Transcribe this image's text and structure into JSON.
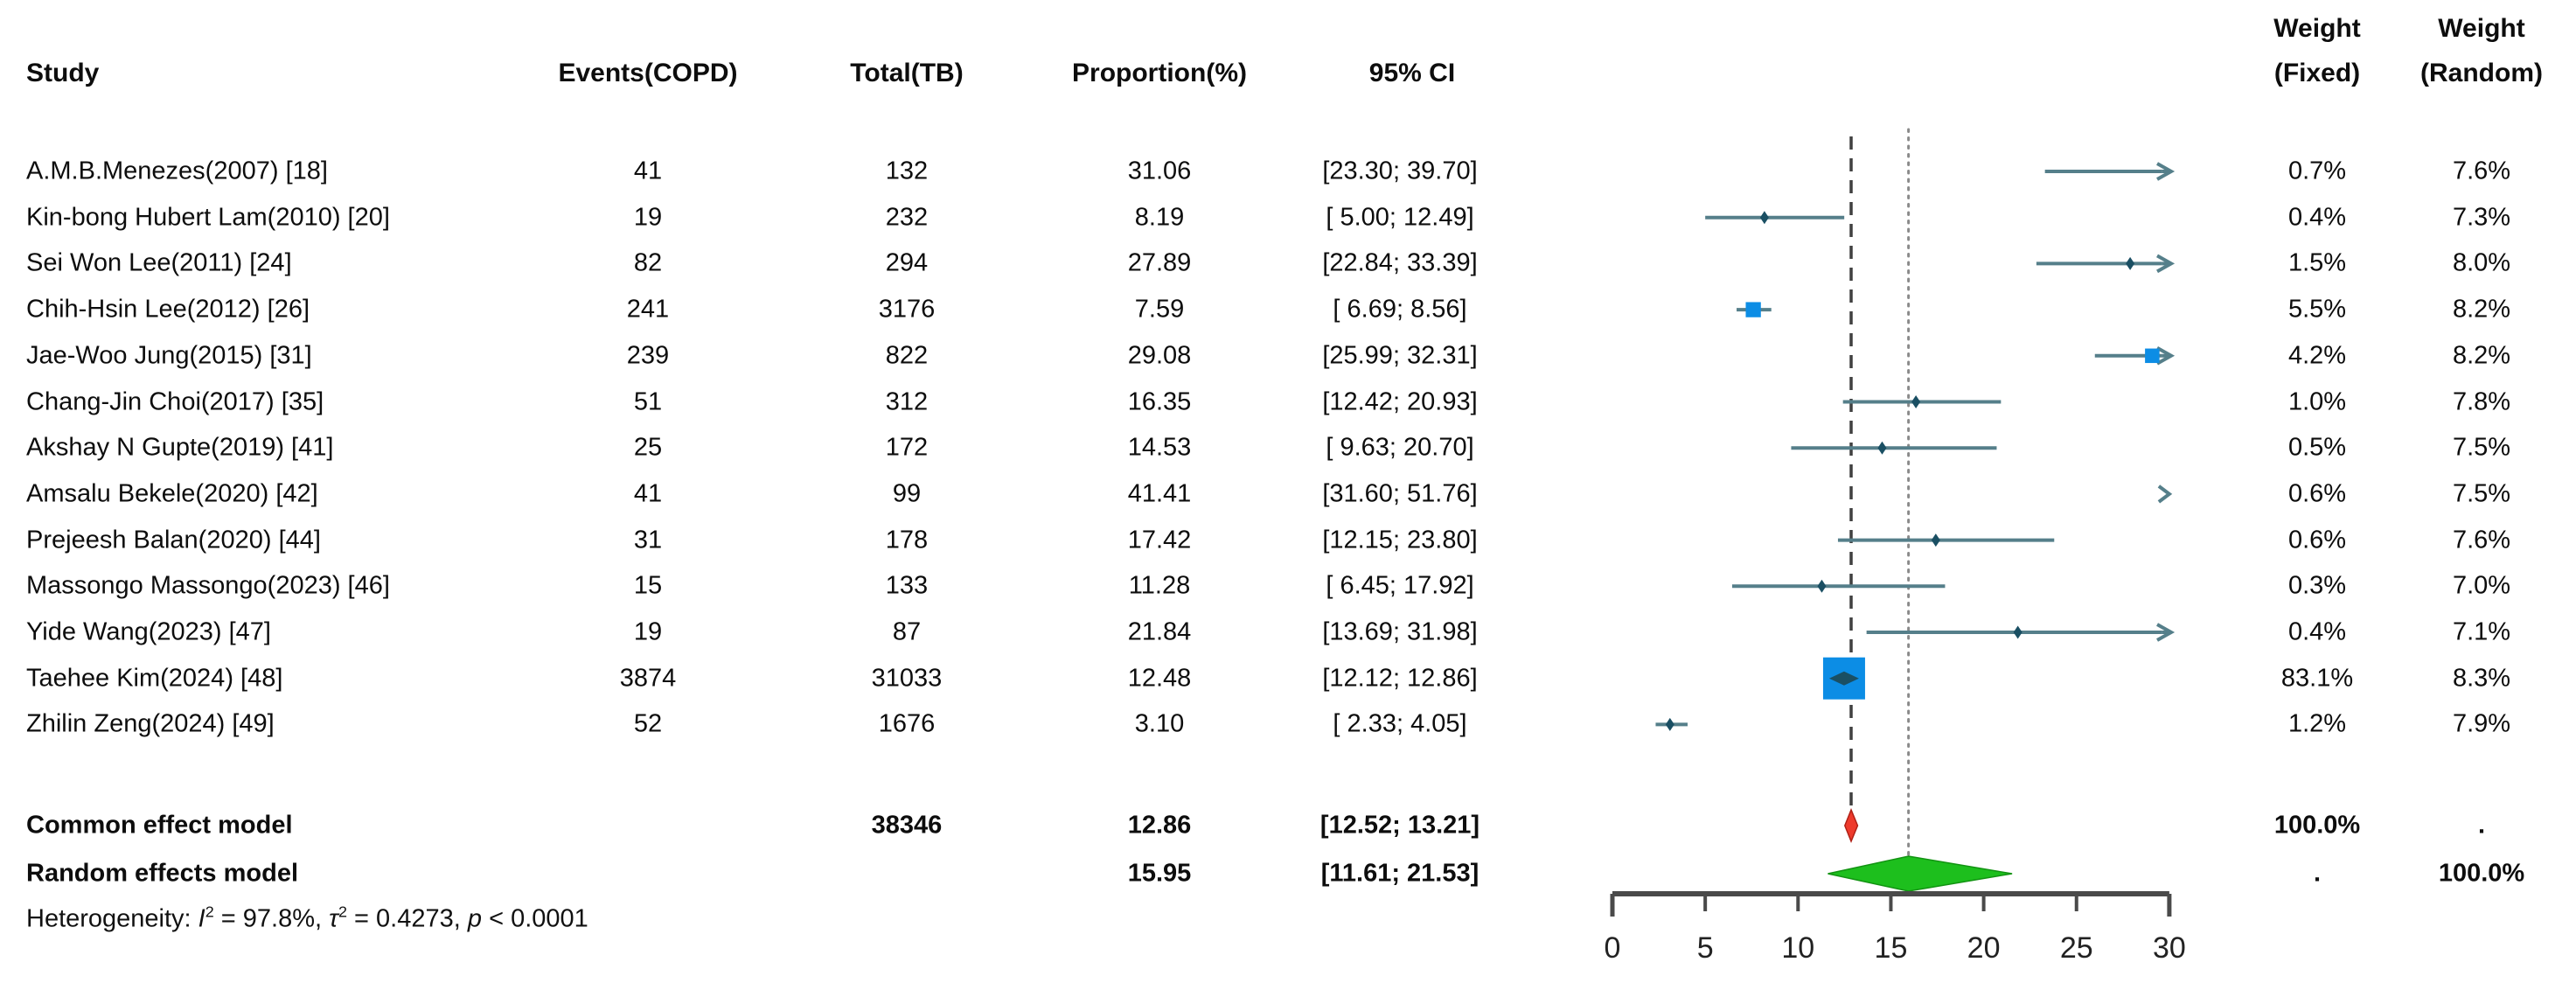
{
  "figure": {
    "kind": "meta-analysis forest plot",
    "columns": {
      "study": "Study",
      "events": "Events(COPD)",
      "total": "Total(TB)",
      "proportion": "Proportion(%)",
      "ci": "95% CI",
      "weight_fixed_line1": "Weight",
      "weight_fixed_line2": "(Fixed)",
      "weight_random_line1": "Weight",
      "weight_random_line2": "(Random)"
    }
  },
  "colors": {
    "ci_line": "#557f8a",
    "marker": "#1a4f63",
    "square": "#0c8de5",
    "common_diamond": "#ee3a2c",
    "random_diamond": "#1dbf1d",
    "dashed_line": "#404040",
    "dotted_line": "#8a8a8a",
    "axis": "#4a4a4a",
    "axis_label": "#222222"
  },
  "chart_data": {
    "type": "forest",
    "x_axis": {
      "min": 0,
      "max": 30,
      "ticks": [
        0,
        5,
        10,
        15,
        20,
        25,
        30
      ],
      "grid": false
    },
    "reference_lines": {
      "common_effect": 12.86,
      "random_effects": 15.95
    },
    "studies": [
      {
        "name": "A.M.B.Menezes(2007) [18]",
        "events": "41",
        "total": "132",
        "proportion": "31.06",
        "proportion_value": 31.06,
        "ci": [
          23.3,
          39.7
        ],
        "ci_label": "[23.30; 39.70]",
        "weight_fixed": "0.7%",
        "weight_fixed_value": 0.7,
        "weight_random": "7.6%"
      },
      {
        "name": "Kin-bong Hubert Lam(2010) [20]",
        "events": "19",
        "total": "232",
        "proportion": "8.19",
        "proportion_value": 8.19,
        "ci": [
          5.0,
          12.49
        ],
        "ci_label": "[ 5.00; 12.49]",
        "weight_fixed": "0.4%",
        "weight_fixed_value": 0.4,
        "weight_random": "7.3%"
      },
      {
        "name": "Sei Won Lee(2011) [24]",
        "events": "82",
        "total": "294",
        "proportion": "27.89",
        "proportion_value": 27.89,
        "ci": [
          22.84,
          33.39
        ],
        "ci_label": "[22.84; 33.39]",
        "weight_fixed": "1.5%",
        "weight_fixed_value": 1.5,
        "weight_random": "8.0%"
      },
      {
        "name": "Chih-Hsin Lee(2012) [26]",
        "events": "241",
        "total": "3176",
        "proportion": "7.59",
        "proportion_value": 7.59,
        "ci": [
          6.69,
          8.56
        ],
        "ci_label": "[ 6.69;  8.56]",
        "weight_fixed": "5.5%",
        "weight_fixed_value": 5.5,
        "weight_random": "8.2%"
      },
      {
        "name": "Jae-Woo Jung(2015) [31]",
        "events": "239",
        "total": "822",
        "proportion": "29.08",
        "proportion_value": 29.08,
        "ci": [
          25.99,
          32.31
        ],
        "ci_label": "[25.99; 32.31]",
        "weight_fixed": "4.2%",
        "weight_fixed_value": 4.2,
        "weight_random": "8.2%"
      },
      {
        "name": "Chang-Jin Choi(2017) [35]",
        "events": "51",
        "total": "312",
        "proportion": "16.35",
        "proportion_value": 16.35,
        "ci": [
          12.42,
          20.93
        ],
        "ci_label": "[12.42; 20.93]",
        "weight_fixed": "1.0%",
        "weight_fixed_value": 1.0,
        "weight_random": "7.8%"
      },
      {
        "name": "Akshay N Gupte(2019) [41]",
        "events": "25",
        "total": "172",
        "proportion": "14.53",
        "proportion_value": 14.53,
        "ci": [
          9.63,
          20.7
        ],
        "ci_label": "[ 9.63; 20.70]",
        "weight_fixed": "0.5%",
        "weight_fixed_value": 0.5,
        "weight_random": "7.5%"
      },
      {
        "name": "Amsalu Bekele(2020) [42]",
        "events": "41",
        "total": "99",
        "proportion": "41.41",
        "proportion_value": 41.41,
        "ci": [
          31.6,
          51.76
        ],
        "ci_label": "[31.60; 51.76]",
        "weight_fixed": "0.6%",
        "weight_fixed_value": 0.6,
        "weight_random": "7.5%"
      },
      {
        "name": "Prejeesh Balan(2020) [44]",
        "events": "31",
        "total": "178",
        "proportion": "17.42",
        "proportion_value": 17.42,
        "ci": [
          12.15,
          23.8
        ],
        "ci_label": "[12.15; 23.80]",
        "weight_fixed": "0.6%",
        "weight_fixed_value": 0.6,
        "weight_random": "7.6%"
      },
      {
        "name": "Massongo Massongo(2023) [46]",
        "events": "15",
        "total": "133",
        "proportion": "11.28",
        "proportion_value": 11.28,
        "ci": [
          6.45,
          17.92
        ],
        "ci_label": "[ 6.45; 17.92]",
        "weight_fixed": "0.3%",
        "weight_fixed_value": 0.3,
        "weight_random": "7.0%"
      },
      {
        "name": "Yide Wang(2023) [47]",
        "events": "19",
        "total": "87",
        "proportion": "21.84",
        "proportion_value": 21.84,
        "ci": [
          13.69,
          31.98
        ],
        "ci_label": "[13.69; 31.98]",
        "weight_fixed": "0.4%",
        "weight_fixed_value": 0.4,
        "weight_random": "7.1%"
      },
      {
        "name": "Taehee Kim(2024) [48]",
        "events": "3874",
        "total": "31033",
        "proportion": "12.48",
        "proportion_value": 12.48,
        "ci": [
          12.12,
          12.86
        ],
        "ci_label": "[12.12; 12.86]",
        "weight_fixed": "83.1%",
        "weight_fixed_value": 83.1,
        "weight_random": "8.3%"
      },
      {
        "name": "Zhilin Zeng(2024) [49]",
        "events": "52",
        "total": "1676",
        "proportion": "3.10",
        "proportion_value": 3.1,
        "ci": [
          2.33,
          4.05
        ],
        "ci_label": "[ 2.33;  4.05]",
        "weight_fixed": "1.2%",
        "weight_fixed_value": 1.2,
        "weight_random": "7.9%"
      }
    ],
    "summary": {
      "common": {
        "label": "Common effect model",
        "total": "38346",
        "proportion": "12.86",
        "proportion_value": 12.86,
        "ci": [
          12.52,
          13.21
        ],
        "ci_label": "[12.52; 13.21]",
        "weight_fixed": "100.0%",
        "weight_random": "."
      },
      "random": {
        "label": "Random effects model",
        "proportion": "15.95",
        "proportion_value": 15.95,
        "ci": [
          11.61,
          21.53
        ],
        "ci_label": "[11.61; 21.53]",
        "weight_fixed": ".",
        "weight_random": "100.0%"
      }
    },
    "heterogeneity": {
      "prefix": "Heterogeneity: ",
      "i_symbol": "I",
      "i_sup": "2",
      "seg1": " = 97.8%, ",
      "tau_symbol": "τ",
      "tau_sup": "2",
      "seg2": " = 0.4273, ",
      "p_symbol": "p",
      "seg3": " < 0.0001"
    }
  }
}
